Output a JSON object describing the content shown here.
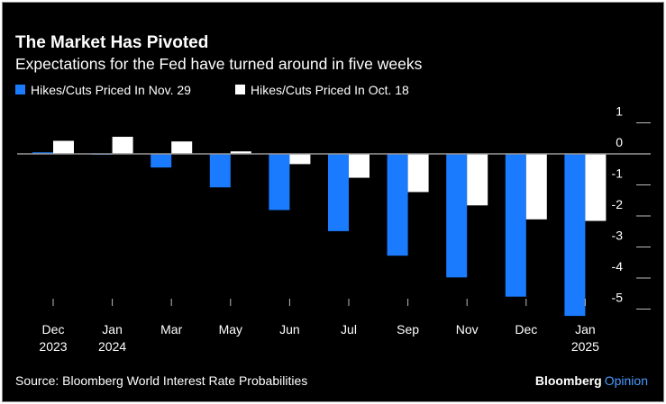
{
  "chart_data": {
    "type": "bar",
    "title": "The Market Has Pivoted",
    "subtitle": "Expectations for the Fed have turned around in five weeks",
    "categories": [
      [
        "Dec",
        "2023"
      ],
      [
        "Jan",
        "2024"
      ],
      [
        "Mar",
        ""
      ],
      [
        "May",
        ""
      ],
      [
        "Jun",
        ""
      ],
      [
        "Jul",
        ""
      ],
      [
        "Sep",
        ""
      ],
      [
        "Nov",
        ""
      ],
      [
        "Dec",
        ""
      ],
      [
        "Jan",
        "2025"
      ]
    ],
    "series": [
      {
        "name": "Hikes/Cuts Priced In Nov. 29",
        "color": "#1a7bff",
        "values": [
          0.05,
          -0.01,
          -0.44,
          -1.08,
          -1.81,
          -2.49,
          -3.28,
          -3.98,
          -4.6,
          -5.22
        ]
      },
      {
        "name": "Hikes/Cuts Priced In Oct. 18",
        "color": "#ffffff",
        "values": [
          0.42,
          0.55,
          0.4,
          0.08,
          -0.33,
          -0.77,
          -1.23,
          -1.66,
          -2.11,
          -2.16
        ]
      }
    ],
    "yticks": [
      "1",
      "0",
      "-1",
      "-2",
      "-3",
      "-4",
      "-5"
    ],
    "ylim": [
      -5.3,
      1
    ],
    "xlabel": "",
    "ylabel": "",
    "legend": "top-left",
    "source": "Source: Bloomberg World Interest Rate Probabilities",
    "brand": "Bloomberg",
    "brand_accent": "Opinion"
  }
}
